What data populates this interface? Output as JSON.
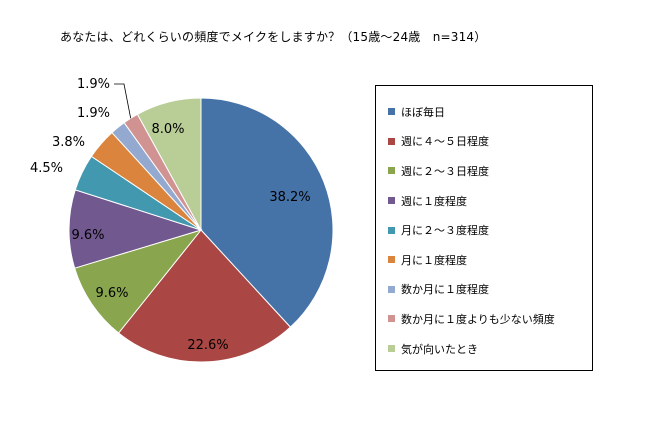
{
  "chart_data": {
    "type": "pie",
    "title": "あなたは、どれくらいの頻度でメイクをしますか？（15歳～24歳　n=314）",
    "slices": [
      {
        "label": "ほぼ毎日",
        "value": 38.2,
        "display": "38.2%",
        "color": "#4572a7"
      },
      {
        "label": "週に４～５日程度",
        "value": 22.6,
        "display": "22.6%",
        "color": "#aa4643"
      },
      {
        "label": "週に２～３日程度",
        "value": 9.6,
        "display": "9.6%",
        "color": "#89a54e"
      },
      {
        "label": "週に１度程度",
        "value": 9.6,
        "display": "9.6%",
        "color": "#71588f"
      },
      {
        "label": "月に２～３度程度",
        "value": 4.5,
        "display": "4.5%",
        "color": "#4198af"
      },
      {
        "label": "月に１度程度",
        "value": 3.8,
        "display": "3.8%",
        "color": "#db843d"
      },
      {
        "label": "数か月に１度程度",
        "value": 1.9,
        "display": "1.9%",
        "color": "#93a9cf"
      },
      {
        "label": "数か月に１度よりも少ない頻度",
        "value": 1.9,
        "display": "1.9%",
        "color": "#d19392"
      },
      {
        "label": "気が向いたとき",
        "value": 8.0,
        "display": "8.0%",
        "color": "#b9cd96"
      }
    ],
    "legend_position": "right"
  }
}
